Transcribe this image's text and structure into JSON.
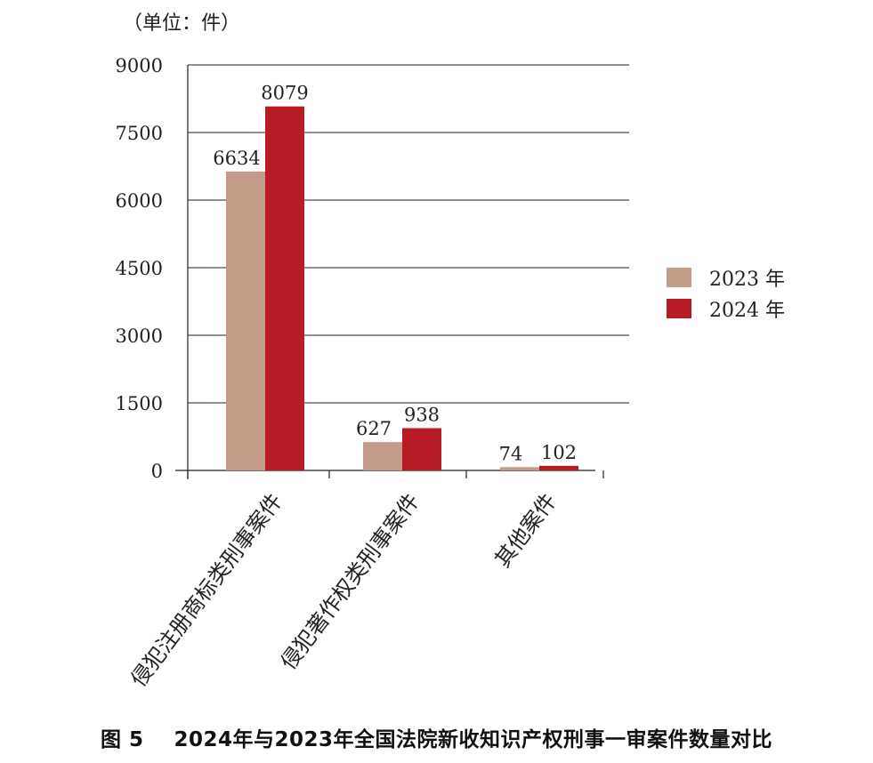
{
  "unit_label": "（单位：件）",
  "caption": {
    "figure_no": "图 5",
    "text": "2024年与2023年全国法院新收知识产权刑事一审案件数量对比"
  },
  "colors": {
    "series_2023": "#c49a88",
    "series_2024": "#b71c24",
    "grid": "#222222",
    "text": "#222222"
  },
  "chart_data": {
    "type": "bar",
    "categories": [
      "侵犯注册商标类刑事案件",
      "侵犯著作权类刑事案件",
      "其他案件"
    ],
    "series": [
      {
        "name": "2023 年",
        "values": [
          6634,
          627,
          74
        ]
      },
      {
        "name": "2024 年",
        "values": [
          8079,
          938,
          102
        ]
      }
    ],
    "yticks": [
      0,
      1500,
      3000,
      4500,
      6000,
      7500,
      9000
    ],
    "ylim": [
      0,
      9000
    ],
    "grid": true,
    "legend_position": "right"
  }
}
